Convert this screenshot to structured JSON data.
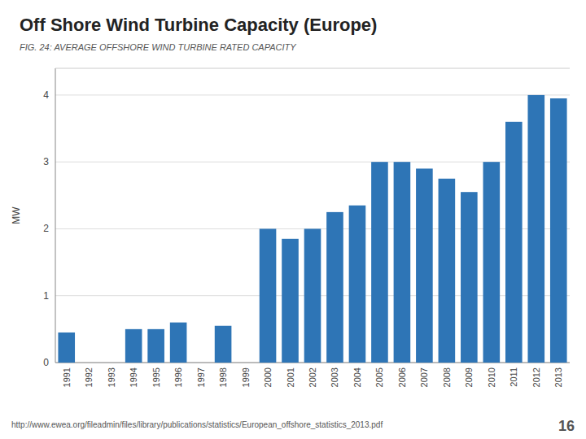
{
  "chart_data": {
    "type": "bar",
    "title": "Off Shore Wind Turbine Capacity (Europe)",
    "subtitle": "FIG. 24: AVERAGE OFFSHORE WIND TURBINE RATED CAPACITY",
    "ylabel": "MW",
    "annotations": [
      "http://www.ewea.org/fileadmin/files/library/publications/statistics/European_offshore_statistics_2013.pdf",
      "16"
    ],
    "categories": [
      "1991",
      "1992",
      "1993",
      "1994",
      "1995",
      "1996",
      "1997",
      "1998",
      "1999",
      "2000",
      "2001",
      "2002",
      "2003",
      "2004",
      "2005",
      "2006",
      "2007",
      "2008",
      "2009",
      "2010",
      "2011",
      "2012",
      "2013"
    ],
    "values": [
      0.45,
      0.0,
      0.0,
      0.5,
      0.5,
      0.6,
      0.0,
      0.55,
      0.0,
      2.0,
      1.85,
      2.0,
      2.25,
      2.35,
      3.0,
      3.0,
      2.9,
      2.75,
      2.55,
      3.0,
      3.6,
      4.0,
      3.95
    ],
    "color": "#2e75b6",
    "ylim": [
      0,
      4.4
    ],
    "yticks": [
      0,
      1,
      2,
      3,
      4
    ],
    "grid": true
  }
}
